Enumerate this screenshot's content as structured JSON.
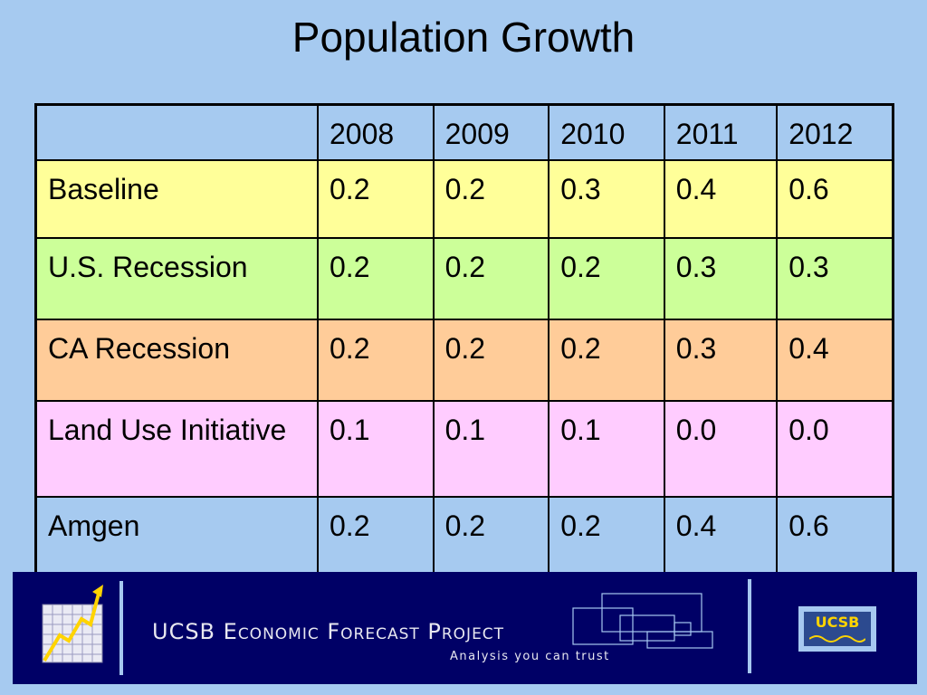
{
  "title": "Population Growth",
  "table": {
    "header": [
      "",
      "2008",
      "2009",
      "2010",
      "2011",
      "2012"
    ],
    "rows": [
      {
        "label": "Baseline",
        "values": [
          "0.2",
          "0.2",
          "0.3",
          "0.4",
          "0.6"
        ],
        "color": "#ffff99"
      },
      {
        "label": "U.S. Recession",
        "values": [
          "0.2",
          "0.2",
          "0.2",
          "0.3",
          "0.3"
        ],
        "color": "#ccff99"
      },
      {
        "label": "CA Recession",
        "values": [
          "0.2",
          "0.2",
          "0.2",
          "0.3",
          "0.4"
        ],
        "color": "#ffcc99"
      },
      {
        "label": "Land Use Initiative",
        "values": [
          "0.1",
          "0.1",
          "0.1",
          "0.0",
          "0.0"
        ],
        "color": "#ffccff"
      },
      {
        "label": "Amgen",
        "values": [
          "0.2",
          "0.2",
          "0.2",
          "0.4",
          "0.6"
        ],
        "color": "#a6caf0"
      }
    ]
  },
  "footer": {
    "project_name": "UCSB Economic Forecast Project",
    "tagline": "Analysis you can trust",
    "logo_text": "UCSB",
    "background": "#000066"
  },
  "colors": {
    "background": "#a6caf0"
  }
}
